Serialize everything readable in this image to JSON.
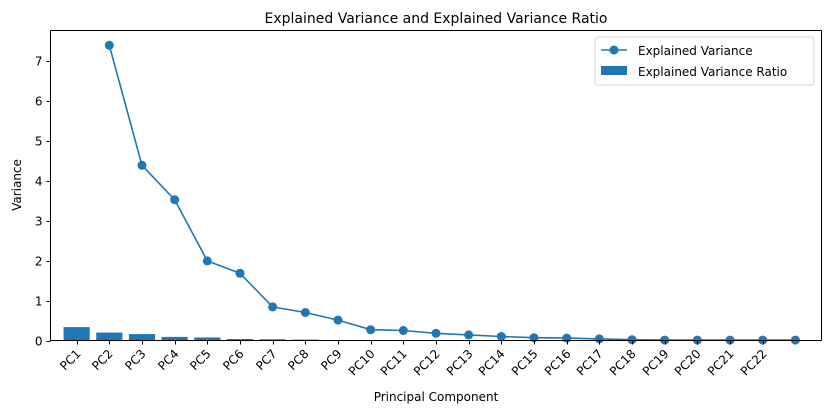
{
  "chart_data": {
    "type": "bar",
    "title": "Explained Variance and Explained Variance Ratio",
    "xlabel": "Principal Component",
    "ylabel": "Variance",
    "ylim": [
      0,
      7.75
    ],
    "yticks": [
      0,
      1,
      2,
      3,
      4,
      5,
      6,
      7
    ],
    "categories": [
      "PC1",
      "PC2",
      "PC3",
      "PC4",
      "PC5",
      "PC6",
      "PC7",
      "PC8",
      "PC9",
      "PC10",
      "PC11",
      "PC12",
      "PC13",
      "PC14",
      "PC15",
      "PC16",
      "PC17",
      "PC18",
      "PC19",
      "PC20",
      "PC21",
      "PC22"
    ],
    "series": [
      {
        "name": "Explained Variance",
        "type": "line",
        "marker": "circle",
        "color": "#1f77b4",
        "x_offset_categories": 1,
        "values": [
          7.38,
          4.38,
          3.52,
          1.99,
          1.68,
          0.84,
          0.7,
          0.51,
          0.27,
          0.25,
          0.18,
          0.14,
          0.1,
          0.07,
          0.06,
          0.04,
          0.02,
          0.01,
          0.01,
          0.01,
          0.01,
          0.01
        ]
      },
      {
        "name": "Explained Variance Ratio",
        "type": "bar",
        "color": "#1f77b4",
        "values": [
          0.335,
          0.199,
          0.16,
          0.09,
          0.076,
          0.038,
          0.032,
          0.023,
          0.012,
          0.011,
          0.008,
          0.006,
          0.004,
          0.003,
          0.003,
          0.002,
          0.001,
          0.0005,
          0.0004,
          0.0004,
          0.0003,
          0.0003
        ]
      }
    ],
    "legend": "top-right",
    "grid": false
  }
}
